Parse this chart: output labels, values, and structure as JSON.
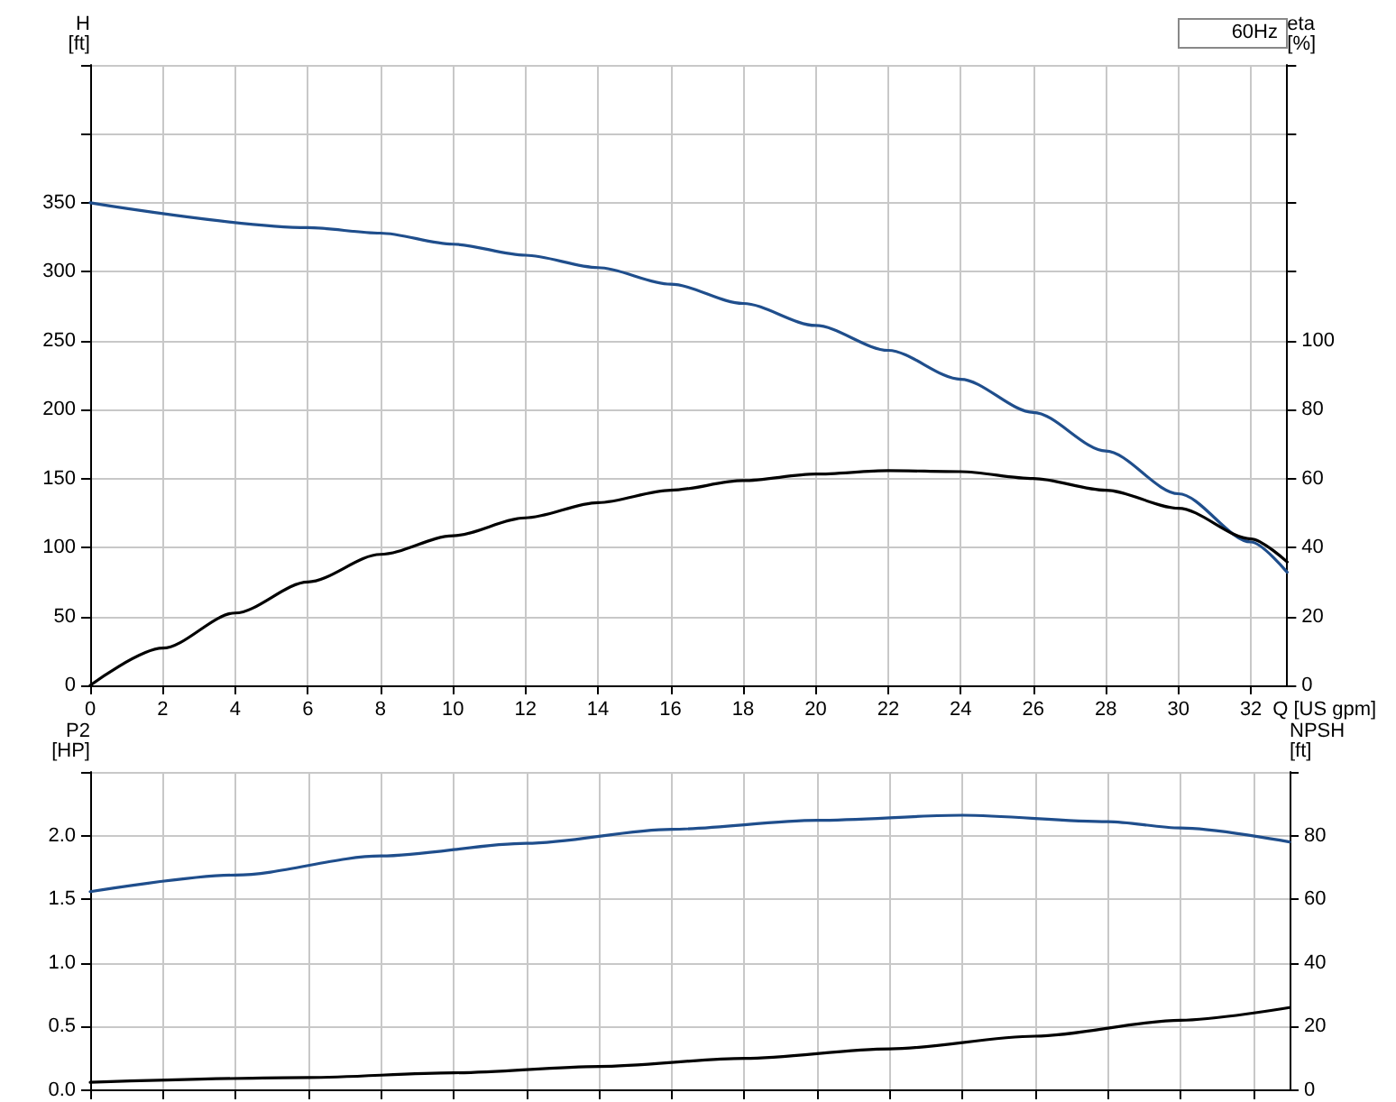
{
  "chart_data": [
    {
      "type": "line",
      "ylabel": "H\n[ft]",
      "y2label": "eta\n[%]",
      "xlabel": "Q [US gpm]",
      "annotations": [
        "60Hz"
      ],
      "xlim": [
        0,
        33
      ],
      "xticks": [
        0,
        2,
        4,
        6,
        8,
        10,
        12,
        14,
        16,
        18,
        20,
        22,
        24,
        26,
        28,
        30,
        32
      ],
      "ylim": [
        0,
        450
      ],
      "yticks": [
        0,
        50,
        100,
        150,
        200,
        250,
        300,
        350,
        {
          "value": 400,
          "label": null
        },
        {
          "value": 450,
          "label": null
        }
      ],
      "y2lim": [
        0,
        180
      ],
      "y2ticks": [
        0,
        20,
        40,
        60,
        80,
        100,
        {
          "value": 120,
          "label": null
        },
        {
          "value": 140,
          "label": null
        },
        {
          "value": 160,
          "label": null
        },
        {
          "value": 180,
          "label": null
        }
      ],
      "grid": true,
      "marker": "none",
      "line_style": "solid",
      "series": [
        {
          "color": "#1f4e8c",
          "x": [
            0,
            6,
            8,
            10,
            12,
            14,
            16,
            18,
            20,
            22,
            24,
            26,
            28,
            30,
            32,
            33
          ],
          "values": [
            350,
            332,
            328,
            320,
            312,
            303,
            291,
            277,
            261,
            243,
            222,
            198,
            170,
            139,
            104,
            82
          ]
        },
        {
          "color": "#000000",
          "axis": "y2",
          "x": [
            0,
            2,
            4,
            6,
            8,
            10,
            12,
            14,
            16,
            18,
            20,
            22,
            24,
            26,
            28,
            30,
            32,
            33
          ],
          "values": [
            0,
            10.8,
            21,
            30,
            38,
            43.4,
            48.6,
            53,
            56.6,
            59.4,
            61.3,
            62.3,
            62,
            60,
            56.6,
            51.4,
            42.5,
            35.8
          ]
        }
      ]
    },
    {
      "type": "line",
      "ylabel": "P2\n[HP]",
      "y2label": "NPSH\n[ft]",
      "tick_labels": "y",
      "xlim": [
        0,
        33
      ],
      "xticks": [
        0,
        2,
        4,
        6,
        8,
        10,
        12,
        14,
        16,
        18,
        20,
        22,
        24,
        26,
        28,
        30,
        32
      ],
      "ylim": [
        0,
        2.5
      ],
      "yticks": [
        {
          "value": 0,
          "label": "0.0"
        },
        0.5,
        {
          "value": 1,
          "label": "1.0"
        },
        1.5,
        {
          "value": 2,
          "label": "2.0"
        },
        {
          "value": 2.5,
          "label": null
        }
      ],
      "y2lim": [
        0,
        100
      ],
      "y2ticks": [
        0,
        20,
        40,
        60,
        80,
        {
          "value": 100,
          "label": null
        }
      ],
      "grid": true,
      "marker": "none",
      "line_style": "solid",
      "series": [
        {
          "color": "#1f4e8c",
          "x": [
            0,
            4,
            8,
            12,
            16,
            20,
            24,
            28,
            30,
            33
          ],
          "values": [
            1.56,
            1.69,
            1.84,
            1.94,
            2.05,
            2.12,
            2.16,
            2.11,
            2.06,
            1.95
          ]
        },
        {
          "color": "#000000",
          "axis": "y2",
          "x": [
            0,
            6,
            10,
            14,
            18,
            22,
            26,
            30,
            33
          ],
          "values": [
            2.5,
            4,
            5.5,
            7.5,
            10,
            13,
            17,
            22,
            26
          ]
        }
      ]
    }
  ]
}
